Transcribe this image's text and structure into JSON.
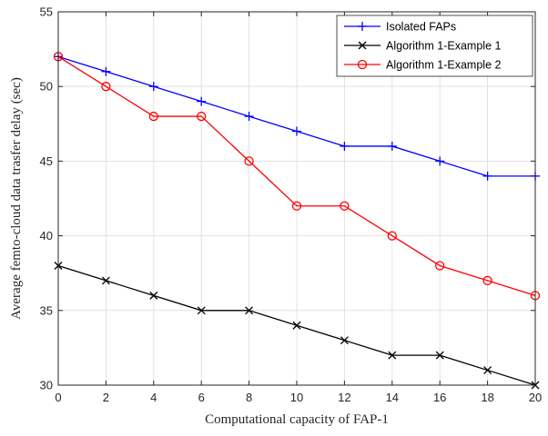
{
  "chart_data": {
    "type": "line",
    "title": "",
    "xlabel": "Computational capacity of FAP-1",
    "ylabel": "Average femto-cloud data trasfer delay (sec)",
    "xlim": [
      0,
      20
    ],
    "ylim": [
      30,
      55
    ],
    "x_ticks": [
      0,
      2,
      4,
      6,
      8,
      10,
      12,
      14,
      16,
      18,
      20
    ],
    "y_ticks": [
      30,
      35,
      40,
      45,
      50,
      55
    ],
    "grid": true,
    "legend_position": "top-right",
    "x": [
      0,
      2,
      4,
      6,
      8,
      10,
      12,
      14,
      16,
      18,
      20
    ],
    "series": [
      {
        "name": "Isolated FAPs",
        "color": "#0000ff",
        "marker": "plus",
        "values": [
          52,
          51,
          50,
          49,
          48,
          47,
          46,
          46,
          45,
          44,
          44
        ]
      },
      {
        "name": "Algorithm 1-Example 1",
        "color": "#000000",
        "marker": "x",
        "values": [
          38,
          37,
          36,
          35,
          35,
          34,
          33,
          32,
          32,
          31,
          30
        ]
      },
      {
        "name": "Algorithm 1-Example 2",
        "color": "#ff0000",
        "marker": "circle",
        "values": [
          52,
          50,
          48,
          48,
          45,
          42,
          42,
          40,
          38,
          37,
          36
        ]
      }
    ]
  }
}
